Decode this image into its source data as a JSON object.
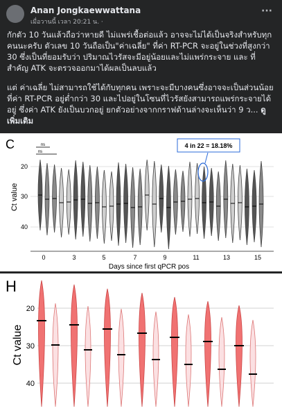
{
  "header": {
    "author": "Anan Jongkaewwattana",
    "timestamp": "เมื่อวานนี้ เวลา 20:21 น. ·"
  },
  "post": {
    "paragraphs": [
      "กักตัว 10 วันแล้วถือว่าหายดี ไม่แพร่เชื้อต่อแล้ว อาจจะไม่ได้เป็นจริงสำหรับทุกคนนะครับ ตัวเลข 10 วันถือเป็น\"ค่าเฉลี่ย\" ที่ค่า RT-PCR จะอยู่ในช่วงที่สูงกว่า 30 ซึ่งเป็นที่ยอมรับว่า ปริมาณไวรัสจะมีอยู่น้อยและไม่แพร่กระจาย และ ที่สำคัญ ATK จะตรวจออกมาได้ผลเป็นลบแล้ว",
      "แต่ ค่าเฉลี่ย ไม่สามารถใช้ได้กับทุกคน เพราะจะมีบางคนซึ่งอาจจะเป็นส่วนน้อยที่ค่า RT-PCR อยู่ต่ำกว่า 30 และไปอยู่ในโซนที่ไวรัสยังสามารถแพร่กระจายได้อยู่ ซึ่งค่า ATK ยังเป็นบวกอยู่ ยกตัวอย่างจากกราฟด้านล่างจะเห็นว่า 9 ว..."
    ],
    "see_more": "ดูเพิ่มเติม"
  },
  "figure_c": {
    "panel_label": "C",
    "y_axis_label": "Ct value",
    "y_ticks": [
      "20",
      "30",
      "40"
    ],
    "x_ticks": [
      "0",
      "3",
      "5",
      "7",
      "9",
      "11",
      "13",
      "15"
    ],
    "x_axis_label": "Days since first qPCR pos",
    "annotation": "4 in 22 = 18.18%",
    "significance": [
      "ns",
      "ns"
    ]
  },
  "figure_h": {
    "panel_label": "H",
    "y_axis_label": "Ct value",
    "y_ticks": [
      "20",
      "30",
      "40"
    ]
  }
}
